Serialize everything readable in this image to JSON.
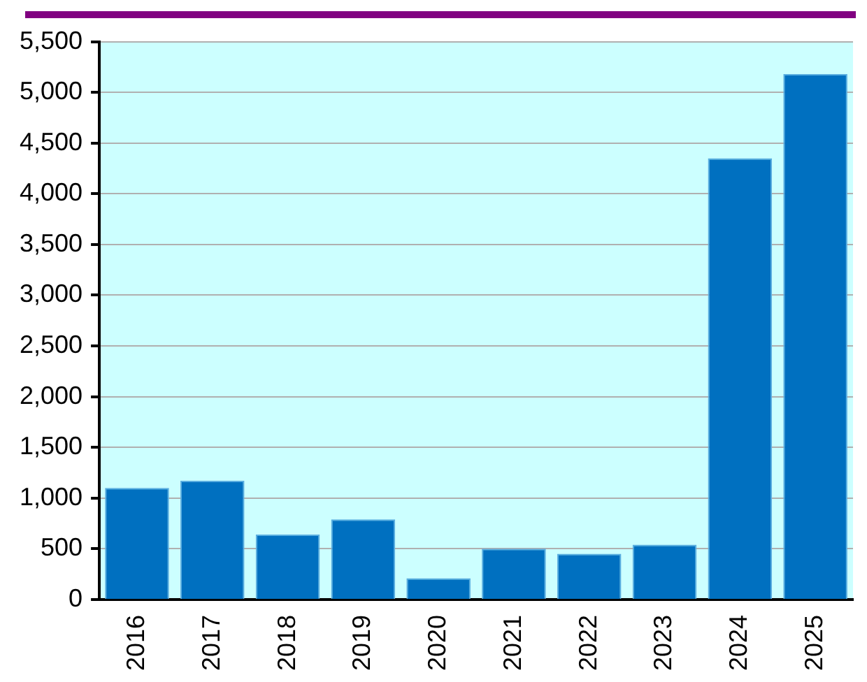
{
  "chart_data": {
    "type": "bar",
    "categories": [
      "2016",
      "2017",
      "2018",
      "2019",
      "2020",
      "2021",
      "2022",
      "2023",
      "2024",
      "2025"
    ],
    "values": [
      1100,
      1170,
      640,
      790,
      210,
      500,
      450,
      540,
      4350,
      5180
    ],
    "color": "#0070c0",
    "ylim": [
      0,
      5500
    ],
    "yticks": [
      {
        "value": 0,
        "label": "0"
      },
      {
        "value": 500,
        "label": "500"
      },
      {
        "value": 1000,
        "label": "1,000"
      },
      {
        "value": 1500,
        "label": "1,500"
      },
      {
        "value": 2000,
        "label": "2,000"
      },
      {
        "value": 2500,
        "label": "2,500"
      },
      {
        "value": 3000,
        "label": "3,000"
      },
      {
        "value": 3500,
        "label": "3,500"
      },
      {
        "value": 4000,
        "label": "4,000"
      },
      {
        "value": 4500,
        "label": "4,500"
      },
      {
        "value": 5000,
        "label": "5,000"
      },
      {
        "value": 5500,
        "label": "5,500"
      }
    ],
    "grid": "y"
  }
}
